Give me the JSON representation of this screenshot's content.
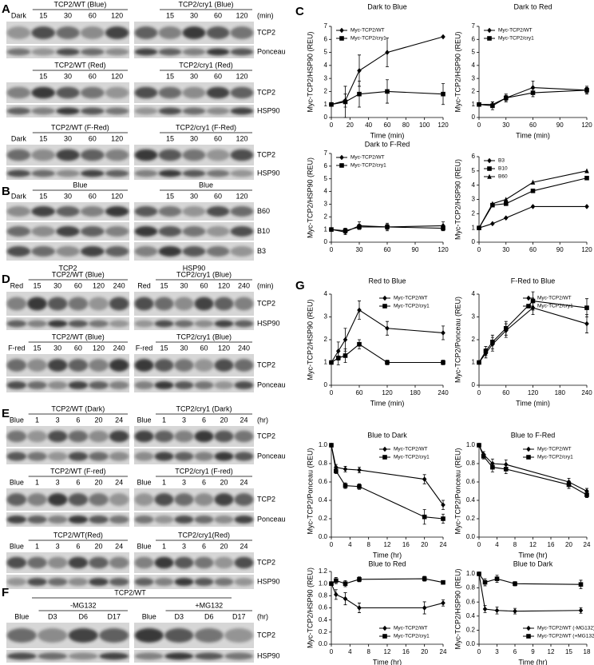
{
  "blots": [
    {
      "panel": "A",
      "rows": [
        {
          "groups": [
            {
              "title": "TCP2/WT (Blue)",
              "lanes": [
                "Dark",
                "15",
                "30",
                "60",
                "120"
              ]
            },
            {
              "title": "TCP2/cry1 (Blue)",
              "lanes": [
                "15",
                "30",
                "60",
                "120"
              ]
            }
          ],
          "unit": "(min)",
          "bands": [
            "TCP2",
            "Ponceau"
          ]
        },
        {
          "groups": [
            {
              "title": "TCP2/WT (Red)",
              "lanes": [
                "15",
                "30",
                "60",
                "120"
              ]
            },
            {
              "title": "TCP2/cry1 (Red)",
              "lanes": [
                "15",
                "30",
                "60",
                "120"
              ]
            }
          ],
          "bands": [
            "TCP2",
            "HSP90"
          ]
        },
        {
          "groups": [
            {
              "title": "TCP2/WT (F-Red)",
              "lanes": [
                "Dark",
                "15",
                "30",
                "60",
                "120"
              ]
            },
            {
              "title": "TCP2/cry1 (F-Red)",
              "lanes": [
                "15",
                "30",
                "60",
                "120"
              ]
            }
          ],
          "bands": [
            "TCP2",
            "HSP90"
          ]
        }
      ]
    },
    {
      "panel": "B",
      "rows": [
        {
          "groups": [
            {
              "title": "Blue",
              "lanes": [
                "Dark",
                "15",
                "30",
                "60",
                "120"
              ]
            },
            {
              "title": "Blue",
              "lanes": [
                "15",
                "30",
                "60",
                "120"
              ]
            }
          ],
          "bands": [
            "B60",
            "B10",
            "B3"
          ],
          "footers": [
            "TCP2",
            "HSP90"
          ]
        }
      ]
    },
    {
      "panel": "D",
      "rows": [
        {
          "groups": [
            {
              "title": "TCP2/WT (Blue)",
              "lanes": [
                "Red",
                "15",
                "30",
                "60",
                "120",
                "240"
              ]
            },
            {
              "title": "TCP2/cry1 (Blue)",
              "lanes": [
                "Red",
                "15",
                "30",
                "60",
                "120",
                "240"
              ]
            }
          ],
          "unit": "(min)",
          "bands": [
            "TCP2",
            "HSP90"
          ]
        },
        {
          "groups": [
            {
              "title": "TCP2/WT (Blue)",
              "lanes": [
                "F-red",
                "15",
                "30",
                "60",
                "120",
                "240"
              ]
            },
            {
              "title": "TCP2/cry1 (Blue)",
              "lanes": [
                "F-red",
                "15",
                "30",
                "60",
                "120",
                "240"
              ]
            }
          ],
          "bands": [
            "TCP2",
            "Ponceau"
          ]
        }
      ]
    },
    {
      "panel": "E",
      "rows": [
        {
          "groups": [
            {
              "title": "TCP2/WT (Dark)",
              "lanes": [
                "Blue",
                "1",
                "3",
                "6",
                "20",
                "24"
              ]
            },
            {
              "title": "TCP2/cry1 (Dark)",
              "lanes": [
                "Blue",
                "1",
                "3",
                "6",
                "20",
                "24"
              ]
            }
          ],
          "unit": "(hr)",
          "bands": [
            "TCP2",
            "Ponceau"
          ]
        },
        {
          "groups": [
            {
              "title": "TCP2/WT (F-red)",
              "lanes": [
                "Blue",
                "1",
                "3",
                "6",
                "20",
                "24"
              ]
            },
            {
              "title": "TCP2/cry1 (F-red)",
              "lanes": [
                "Blue",
                "1",
                "3",
                "6",
                "20",
                "24"
              ]
            }
          ],
          "bands": [
            "TCP2",
            "Ponceau"
          ]
        },
        {
          "groups": [
            {
              "title": "TCP2/WT(Red)",
              "lanes": [
                "Blue",
                "1",
                "3",
                "6",
                "20",
                "24"
              ]
            },
            {
              "title": "TCP2/cry1(Red)",
              "lanes": [
                "Blue",
                "1",
                "3",
                "6",
                "20",
                "24"
              ]
            }
          ],
          "bands": [
            "TCP2",
            "HSP90"
          ]
        }
      ]
    },
    {
      "panel": "F",
      "title": "TCP2/WT",
      "rows": [
        {
          "groups": [
            {
              "title": "-MG132",
              "lanes": [
                "Blue",
                "D3",
                "D6",
                "D17"
              ]
            },
            {
              "title": "+MG132",
              "lanes": [
                "Blue",
                "D3",
                "D6",
                "D17"
              ]
            }
          ],
          "unit": "(hr)",
          "bands": [
            "TCP2",
            "HSP90"
          ]
        }
      ]
    }
  ],
  "chart_data": [
    {
      "type": "line",
      "panel": "C",
      "title": "Dark to Blue",
      "xlabel": "Time (min)",
      "ylabel": "Myc-TCP2/HSP90 (REU)",
      "legend": "upper left",
      "x": [
        0,
        15,
        30,
        60,
        120
      ],
      "xlim": [
        0,
        120
      ],
      "xticks": [
        0,
        20,
        40,
        60,
        80,
        100,
        120
      ],
      "ylim": [
        0,
        7
      ],
      "yticks": [
        0,
        1,
        2,
        3,
        4,
        5,
        6,
        7
      ],
      "series": [
        {
          "name": "Myc-TCP2/WT",
          "color": "#000000",
          "marker": "diamond",
          "values": [
            1,
            1.3,
            3.6,
            5.0,
            6.2
          ],
          "errors": [
            0,
            0.5,
            1.2,
            1.1,
            0
          ]
        },
        {
          "name": "Myc-TCP2/cry1",
          "color": "#000000",
          "marker": "square",
          "values": [
            1,
            1.2,
            1.8,
            2.0,
            1.8
          ],
          "errors": [
            0,
            1.2,
            1.0,
            0.9,
            0.8
          ]
        }
      ]
    },
    {
      "type": "line",
      "title": "Dark to Red",
      "xlabel": "Time (min)",
      "ylabel": "Myc-TCP2/HSP90 (REU)",
      "legend": "upper left",
      "x": [
        0,
        15,
        30,
        60,
        120
      ],
      "xlim": [
        0,
        120
      ],
      "xticks": [
        0,
        30,
        60,
        90,
        120
      ],
      "ylim": [
        0,
        7
      ],
      "yticks": [
        0,
        1,
        2,
        3,
        4,
        5,
        6,
        7
      ],
      "series": [
        {
          "name": "Myc-TCP2/WT",
          "color": "#000000",
          "marker": "diamond",
          "values": [
            1,
            1.0,
            1.5,
            2.3,
            2.1
          ],
          "errors": [
            0,
            0.2,
            0.3,
            0.5,
            0.3
          ]
        },
        {
          "name": "Myc-TCP2/cry1",
          "color": "#000000",
          "marker": "square",
          "values": [
            1,
            0.9,
            1.5,
            1.9,
            2.1
          ],
          "errors": [
            0,
            0.3,
            0.2,
            0.3,
            0.2
          ]
        }
      ]
    },
    {
      "type": "line",
      "title": "Dark to F-Red",
      "ylabel": "Myc-TCP2/HSP90 (REU)",
      "legend": "upper left",
      "x": [
        0,
        15,
        30,
        60,
        120
      ],
      "xlim": [
        0,
        120
      ],
      "xticks": [
        0,
        30,
        60,
        90,
        120
      ],
      "ylim": [
        0,
        7
      ],
      "yticks": [
        0,
        1,
        2,
        3,
        4,
        5,
        6,
        7
      ],
      "series": [
        {
          "name": "Myc-TCP2/WT",
          "color": "#000000",
          "marker": "diamond",
          "values": [
            1,
            0.8,
            1.3,
            1.2,
            1.3
          ],
          "errors": [
            0,
            0.2,
            0.3,
            0.3,
            0.3
          ]
        },
        {
          "name": "Myc-TCP2/cry1",
          "color": "#000000",
          "marker": "square",
          "values": [
            1,
            0.9,
            1.2,
            1.2,
            1.1
          ],
          "errors": [
            0,
            0.2,
            0.2,
            0.2,
            0.2
          ]
        }
      ]
    },
    {
      "type": "line",
      "ylabel": "Myc-TCP2/HSP90 (REU)",
      "legend": "upper left",
      "x": [
        0,
        15,
        30,
        60,
        120
      ],
      "xlim": [
        0,
        120
      ],
      "xticks": [
        0,
        30,
        60,
        90,
        120
      ],
      "ylim": [
        0,
        6
      ],
      "yticks": [
        0,
        1,
        2,
        3,
        4,
        5,
        6
      ],
      "series": [
        {
          "name": "B3",
          "color": "#000000",
          "marker": "diamond",
          "values": [
            1,
            1.3,
            1.7,
            2.5,
            2.5
          ]
        },
        {
          "name": "B10",
          "color": "#000000",
          "marker": "square",
          "values": [
            1,
            2.6,
            2.7,
            3.6,
            4.5
          ]
        },
        {
          "name": "B60",
          "color": "#000000",
          "marker": "triangle",
          "values": [
            1,
            2.7,
            3.0,
            4.2,
            5.0
          ]
        }
      ]
    },
    {
      "type": "line",
      "panel": "G",
      "title": "Red to Blue",
      "xlabel": "Time (min)",
      "ylabel": "Myc-TCP2/HSP90 (REU)",
      "legend": "upper right",
      "x": [
        0,
        15,
        30,
        60,
        120,
        240
      ],
      "xlim": [
        0,
        240
      ],
      "xticks": [
        0,
        60,
        120,
        180,
        240
      ],
      "ylim": [
        0,
        4
      ],
      "yticks": [
        0,
        1,
        2,
        3,
        4
      ],
      "series": [
        {
          "name": "Myc-TCP2/WT",
          "color": "#000000",
          "marker": "diamond",
          "values": [
            1,
            1.5,
            2.0,
            3.3,
            2.5,
            2.3
          ],
          "errors": [
            0,
            0.4,
            0.5,
            0.4,
            0.3,
            0.3
          ]
        },
        {
          "name": "Myc-TCP2/cry1",
          "color": "#000000",
          "marker": "square",
          "values": [
            1,
            1.2,
            1.3,
            1.8,
            1.0,
            1.0
          ],
          "errors": [
            0,
            0.3,
            0.3,
            0.2,
            0.1,
            0.1
          ]
        }
      ]
    },
    {
      "type": "line",
      "title": "F-Red to Blue",
      "xlabel": "Time (min)",
      "ylabel": "Myc-TCP2/Ponceau (REU)",
      "legend": "upper right",
      "x": [
        0,
        15,
        30,
        60,
        120,
        240
      ],
      "xlim": [
        0,
        240
      ],
      "xticks": [
        0,
        60,
        120,
        180,
        240
      ],
      "ylim": [
        0,
        4
      ],
      "yticks": [
        0,
        1,
        2,
        3,
        4
      ],
      "series": [
        {
          "name": "Myc-TCP2/WT",
          "color": "#000000",
          "marker": "diamond",
          "values": [
            1,
            1.4,
            1.8,
            2.4,
            3.4,
            2.7
          ],
          "errors": [
            0,
            0.2,
            0.3,
            0.3,
            0.3,
            0.4
          ]
        },
        {
          "name": "Myc-TCP2/cry1",
          "color": "#000000",
          "marker": "square",
          "values": [
            1,
            1.5,
            1.9,
            2.5,
            3.7,
            3.4
          ],
          "errors": [
            0,
            0.2,
            0.3,
            0.3,
            0.4,
            0.4
          ]
        }
      ]
    },
    {
      "type": "line",
      "title": "Blue to Dark",
      "xlabel": "Time (hr)",
      "ylabel": "Myc-TCP2/Ponceau (REU)",
      "legend": "upper right",
      "x": [
        0,
        1,
        3,
        6,
        20,
        24
      ],
      "xlim": [
        0,
        24
      ],
      "xticks": [
        0,
        4,
        8,
        12,
        16,
        20,
        24
      ],
      "ylim": [
        0,
        1
      ],
      "yticks": [
        {
          "value": 0,
          "label": "0.0"
        },
        0.2,
        0.4,
        0.6,
        0.8,
        {
          "value": 1,
          "label": "1.0"
        }
      ],
      "series": [
        {
          "name": "Myc-TCP2/WT",
          "color": "#000000",
          "marker": "diamond",
          "values": [
            1,
            0.76,
            0.74,
            0.73,
            0.63,
            0.35
          ],
          "errors": [
            0,
            0.03,
            0.03,
            0.03,
            0.05,
            0.05
          ]
        },
        {
          "name": "Myc-TCP2/cry1",
          "color": "#000000",
          "marker": "square",
          "values": [
            1,
            0.72,
            0.56,
            0.55,
            0.22,
            0.2
          ],
          "errors": [
            0,
            0.03,
            0.03,
            0.03,
            0.08,
            0.05
          ]
        }
      ]
    },
    {
      "type": "line",
      "title": "Blue to F-Red",
      "xlabel": "Time (hr)",
      "ylabel": "Myc-TCP2/Ponceau (REU)",
      "legend": "upper right",
      "x": [
        0,
        1,
        3,
        6,
        20,
        24
      ],
      "xlim": [
        0,
        24
      ],
      "xticks": [
        0,
        4,
        8,
        12,
        16,
        20,
        24
      ],
      "ylim": [
        0,
        1
      ],
      "yticks": [
        {
          "value": 0,
          "label": "0.0"
        },
        0.2,
        0.4,
        0.6,
        0.8,
        {
          "value": 1,
          "label": "1.0"
        }
      ],
      "series": [
        {
          "name": "Myc-TCP2/WT",
          "color": "#000000",
          "marker": "diamond",
          "values": [
            1,
            0.9,
            0.8,
            0.79,
            0.6,
            0.5
          ],
          "errors": [
            0,
            0.03,
            0.05,
            0.05,
            0.04,
            0.03
          ]
        },
        {
          "name": "Myc-TCP2/cry1",
          "color": "#000000",
          "marker": "square",
          "values": [
            1,
            0.88,
            0.76,
            0.74,
            0.57,
            0.46
          ],
          "errors": [
            0,
            0.03,
            0.05,
            0.05,
            0.04,
            0.03
          ]
        }
      ]
    },
    {
      "type": "line",
      "title": "Blue to Red",
      "xlabel": "Time (hr)",
      "ylabel": "Myc-TCP2/HSP90 (REU)",
      "legend": "lower right",
      "x": [
        0,
        1,
        3,
        6,
        20,
        24
      ],
      "xlim": [
        0,
        24
      ],
      "xticks": [
        0,
        4,
        8,
        12,
        16,
        20,
        24
      ],
      "ylim": [
        0,
        1.2
      ],
      "yticks": [
        {
          "value": 0,
          "label": "0.0"
        },
        0.2,
        0.4,
        0.6,
        0.8,
        {
          "value": 1,
          "label": "1.0"
        },
        1.2
      ],
      "series": [
        {
          "name": "Myc-TCP2/WT",
          "color": "#000000",
          "marker": "diamond",
          "values": [
            1,
            0.82,
            0.75,
            0.6,
            0.6,
            0.68
          ],
          "errors": [
            0,
            0.08,
            0.1,
            0.08,
            0.1,
            0.05
          ]
        },
        {
          "name": "Myc-TCP2/cry1",
          "color": "#000000",
          "marker": "square",
          "values": [
            1,
            1.05,
            1.0,
            1.07,
            1.08,
            1.02
          ],
          "errors": [
            0,
            0.05,
            0.05,
            0.04,
            0.04,
            0.03
          ]
        }
      ]
    },
    {
      "type": "line",
      "title": "Blue to Dark",
      "xlabel": "Time (hr)",
      "ylabel": "Myc-TCP2/HSP90 (REU)",
      "legend": "lower right",
      "x": [
        0,
        1,
        3,
        6,
        17
      ],
      "xlim": [
        0,
        18
      ],
      "xticks": [
        0,
        3,
        6,
        9,
        12,
        15,
        18
      ],
      "ylim": [
        0,
        1
      ],
      "yticks": [
        {
          "value": 0,
          "label": "0.0"
        },
        0.2,
        0.4,
        0.6,
        0.8,
        {
          "value": 1,
          "label": "1.0"
        }
      ],
      "series": [
        {
          "name": "Myc-TCP2/WT (-MG132)",
          "color": "#000000",
          "marker": "diamond",
          "values": [
            1,
            0.5,
            0.48,
            0.47,
            0.48
          ],
          "errors": [
            0,
            0.05,
            0.05,
            0.04,
            0.04
          ]
        },
        {
          "name": "Myc-TCP2/WT (+MG132)",
          "color": "#000000",
          "marker": "square",
          "values": [
            1,
            0.88,
            0.93,
            0.86,
            0.85
          ],
          "errors": [
            0,
            0.05,
            0.05,
            0.03,
            0.06
          ]
        }
      ]
    }
  ]
}
